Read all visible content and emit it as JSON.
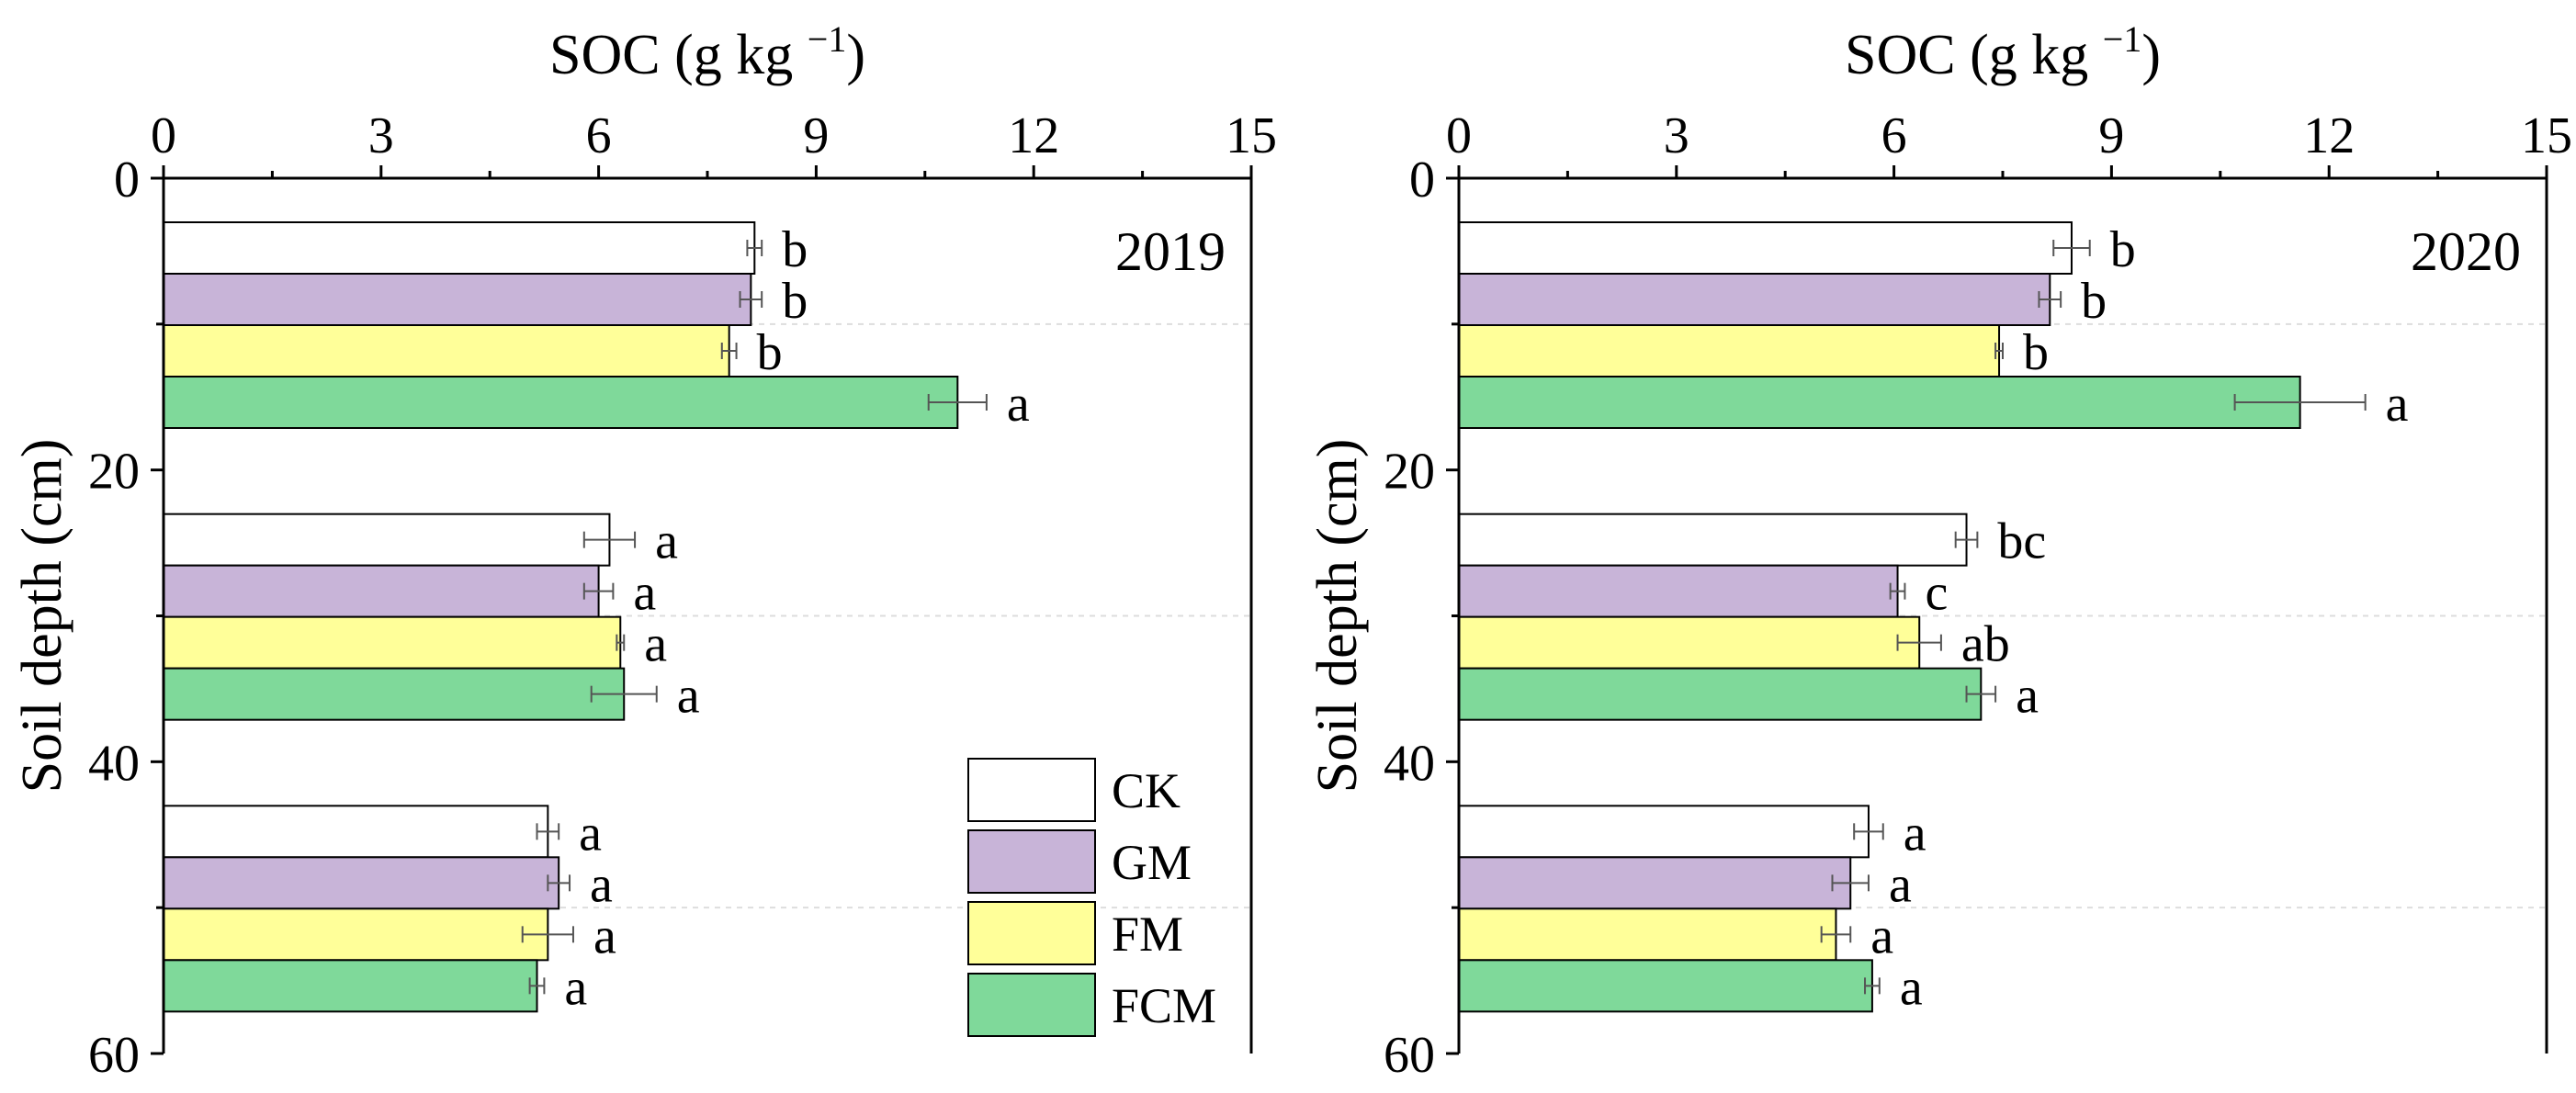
{
  "chart_data": [
    {
      "type": "bar",
      "orientation": "horizontal",
      "panel_label": "2019",
      "title": "",
      "xlabel": "SOC (g kg",
      "xlabel_sup": "−1",
      "xlabel_end": ")",
      "ylabel": "Soil depth (cm)",
      "xlim": [
        0,
        15
      ],
      "ylim": [
        0,
        60
      ],
      "xticks": [
        "0",
        "3",
        "6",
        "9",
        "12",
        "15"
      ],
      "yticks": [
        "0",
        "20",
        "40",
        "60"
      ],
      "grid": "horizontal dashed separators",
      "categories": [
        "0-20",
        "20-40",
        "40-60"
      ],
      "series": [
        {
          "name": "CK",
          "color": "#ffffff",
          "values": [
            8.15,
            6.15,
            5.3
          ],
          "errors": [
            0.1,
            0.35,
            0.15
          ],
          "labels": [
            "b",
            "a",
            "a"
          ]
        },
        {
          "name": "GM",
          "color": "#c8b4d8",
          "values": [
            8.1,
            6.0,
            5.45
          ],
          "errors": [
            0.15,
            0.2,
            0.15
          ],
          "labels": [
            "b",
            "a",
            "a"
          ]
        },
        {
          "name": "FM",
          "color": "#ffff99",
          "values": [
            7.8,
            6.3,
            5.3
          ],
          "errors": [
            0.1,
            0.05,
            0.35
          ],
          "labels": [
            "b",
            "a",
            "a"
          ]
        },
        {
          "name": "FCM",
          "color": "#7fd99a",
          "values": [
            10.95,
            6.35,
            5.15
          ],
          "errors": [
            0.4,
            0.45,
            0.1
          ],
          "labels": [
            "a",
            "a",
            "a"
          ]
        }
      ]
    },
    {
      "type": "bar",
      "orientation": "horizontal",
      "panel_label": "2020",
      "title": "",
      "xlabel": "SOC (g kg",
      "xlabel_sup": "−1",
      "xlabel_end": ")",
      "ylabel": "Soil depth (cm)",
      "xlim": [
        0,
        15
      ],
      "ylim": [
        0,
        60
      ],
      "xticks": [
        "0",
        "3",
        "6",
        "9",
        "12",
        "15"
      ],
      "yticks": [
        "0",
        "20",
        "40",
        "60"
      ],
      "grid": "horizontal dashed separators",
      "categories": [
        "0-20",
        "20-40",
        "40-60"
      ],
      "series": [
        {
          "name": "CK",
          "color": "#ffffff",
          "values": [
            8.45,
            7.0,
            5.65
          ],
          "errors": [
            0.25,
            0.15,
            0.2
          ],
          "labels": [
            "b",
            "bc",
            "a"
          ]
        },
        {
          "name": "GM",
          "color": "#c8b4d8",
          "values": [
            8.15,
            6.05,
            5.4
          ],
          "errors": [
            0.15,
            0.1,
            0.25
          ],
          "labels": [
            "b",
            "c",
            "a"
          ]
        },
        {
          "name": "FM",
          "color": "#ffff99",
          "values": [
            7.45,
            6.35,
            5.2
          ],
          "errors": [
            0.05,
            0.3,
            0.2
          ],
          "labels": [
            "b",
            "ab",
            "a"
          ]
        },
        {
          "name": "FCM",
          "color": "#7fd99a",
          "values": [
            11.6,
            7.2,
            5.7
          ],
          "errors": [
            0.9,
            0.2,
            0.1
          ],
          "labels": [
            "a",
            "a",
            "a"
          ]
        }
      ]
    }
  ],
  "legend": {
    "placement": "bottom-right of first panel",
    "items": [
      {
        "name": "CK",
        "color": "#ffffff"
      },
      {
        "name": "GM",
        "color": "#c8b4d8"
      },
      {
        "name": "FM",
        "color": "#ffff99"
      },
      {
        "name": "FCM",
        "color": "#7fd99a"
      }
    ]
  }
}
